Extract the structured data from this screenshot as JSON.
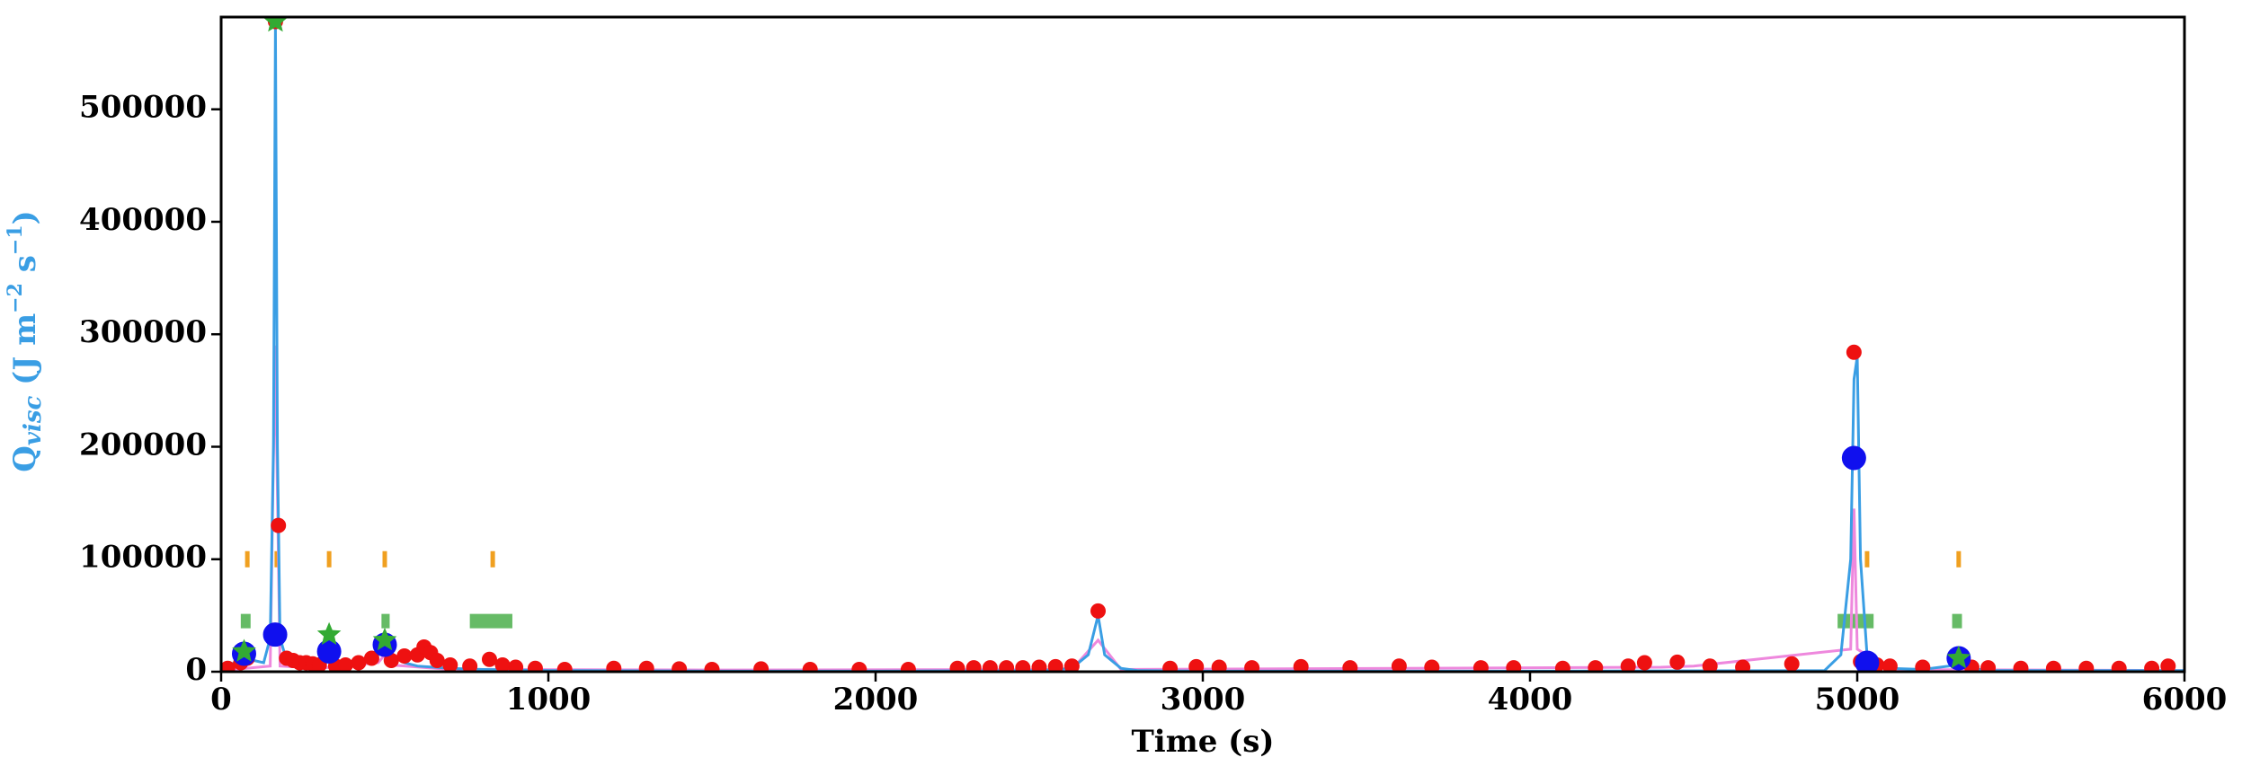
{
  "chart_data": {
    "type": "line",
    "xlabel": "Time (s)",
    "ylabel": [
      {
        "text": "Q",
        "style": "normal"
      },
      {
        "text": "visc",
        "style": "sub"
      },
      {
        "text": " (J m",
        "style": "normal"
      },
      {
        "text": "−2",
        "style": "sup"
      },
      {
        "text": " s",
        "style": "normal"
      },
      {
        "text": "−1",
        "style": "sup"
      },
      {
        "text": ")",
        "style": "normal"
      }
    ],
    "ylabel_color": "#3a9ee4",
    "xlim": [
      0,
      6000
    ],
    "ylim": [
      0,
      582000
    ],
    "xticks": [
      0,
      1000,
      2000,
      3000,
      4000,
      5000,
      6000
    ],
    "yticks": [
      0,
      100000,
      200000,
      300000,
      400000,
      500000
    ],
    "series": [
      {
        "type": "line",
        "color": "#ee88dd",
        "x": [
          0,
          150,
          165,
          180,
          300,
          480,
          500,
          520,
          700,
          1500,
          2600,
          2680,
          2750,
          4400,
          4500,
          4980,
          4990,
          5000,
          5100,
          6000
        ],
        "values": [
          1000,
          5000,
          290000,
          5000,
          3000,
          8000,
          15000,
          6000,
          2000,
          1500,
          2000,
          28000,
          2000,
          4000,
          5000,
          20000,
          145000,
          20000,
          2000,
          1000
        ]
      },
      {
        "type": "line",
        "color": "#3a9ee4",
        "x": [
          0,
          40,
          60,
          80,
          100,
          130,
          150,
          160,
          166,
          172,
          180,
          200,
          250,
          300,
          320,
          330,
          340,
          360,
          400,
          480,
          500,
          520,
          560,
          600,
          700,
          800,
          1000,
          1500,
          2000,
          2500,
          2600,
          2650,
          2680,
          2700,
          2750,
          2800,
          3000,
          4000,
          4900,
          4950,
          4980,
          4990,
          5000,
          5010,
          5030,
          5060,
          5100,
          5200,
          5280,
          5300,
          5320,
          5350,
          5400,
          6000
        ],
        "values": [
          2000,
          8000,
          14000,
          16000,
          10000,
          8000,
          30000,
          200000,
          575000,
          200000,
          30000,
          10000,
          5000,
          8000,
          15000,
          20000,
          15000,
          5000,
          5000,
          15000,
          22000,
          15000,
          8000,
          5000,
          3000,
          2000,
          1000,
          500,
          500,
          1000,
          3000,
          15000,
          50000,
          15000,
          3000,
          1000,
          500,
          500,
          1000,
          15000,
          100000,
          260000,
          280000,
          100000,
          15000,
          5000,
          3000,
          2000,
          5000,
          10000,
          6000,
          3000,
          1000,
          1000
        ]
      },
      {
        "type": "scatter",
        "color": "#ee1111",
        "size": 8,
        "x": [
          20,
          60,
          80,
          166,
          175,
          200,
          220,
          240,
          260,
          280,
          300,
          350,
          380,
          420,
          460,
          520,
          560,
          600,
          620,
          640,
          660,
          700,
          760,
          820,
          860,
          900,
          960,
          1050,
          1200,
          1300,
          1400,
          1500,
          1650,
          1800,
          1950,
          2100,
          2250,
          2300,
          2350,
          2400,
          2450,
          2500,
          2550,
          2600,
          2680,
          2900,
          2980,
          3050,
          3150,
          3300,
          3450,
          3600,
          3700,
          3850,
          3950,
          4100,
          4200,
          4300,
          4350,
          4450,
          4550,
          4650,
          4800,
          4990,
          5010,
          5060,
          5100,
          5200,
          5350,
          5400,
          5500,
          5600,
          5700,
          5800,
          5900,
          5950
        ],
        "values": [
          3000,
          8000,
          12000,
          578000,
          130000,
          12000,
          10000,
          8000,
          8000,
          7000,
          6000,
          5000,
          6000,
          8000,
          12000,
          10000,
          14000,
          15000,
          22000,
          17000,
          10000,
          6000,
          5000,
          11000,
          6000,
          4000,
          3000,
          2000,
          3000,
          3000,
          2500,
          2000,
          2500,
          2000,
          2000,
          2000,
          3000,
          3500,
          3500,
          3500,
          3500,
          4000,
          4500,
          5000,
          54000,
          3000,
          4500,
          4000,
          3500,
          4500,
          3500,
          5000,
          4000,
          3500,
          3500,
          3000,
          3500,
          5000,
          8000,
          8500,
          5000,
          4000,
          7000,
          284000,
          9000,
          6000,
          5000,
          4000,
          4000,
          3500,
          3000,
          3000,
          3000,
          3000,
          3000,
          5000
        ]
      },
      {
        "type": "scatter",
        "color": "#1010ee",
        "size": 13,
        "x": [
          70,
          165,
          330,
          500,
          4990,
          5030,
          5310
        ],
        "values": [
          16000,
          33000,
          18000,
          24000,
          190000,
          8000,
          12000
        ]
      },
      {
        "type": "star",
        "color": "#33aa33",
        "size": 14,
        "x": [
          70,
          166,
          330,
          500,
          5310
        ],
        "values": [
          18000,
          578000,
          33000,
          28000,
          12000
        ]
      },
      {
        "type": "vline",
        "color": "#f0a020",
        "x": [
          80,
          170,
          330,
          500,
          830,
          4990,
          5030,
          5310
        ],
        "values": [
          100000,
          100000,
          100000,
          100000,
          100000,
          100000,
          100000,
          100000
        ]
      },
      {
        "type": "span",
        "color": "#66bb66",
        "x": [
          60,
          490,
          760,
          4940,
          5290
        ],
        "x2": [
          90,
          515,
          890,
          5050,
          5320
        ],
        "values": [
          45000,
          45000,
          45000,
          45000,
          45000
        ]
      }
    ]
  }
}
